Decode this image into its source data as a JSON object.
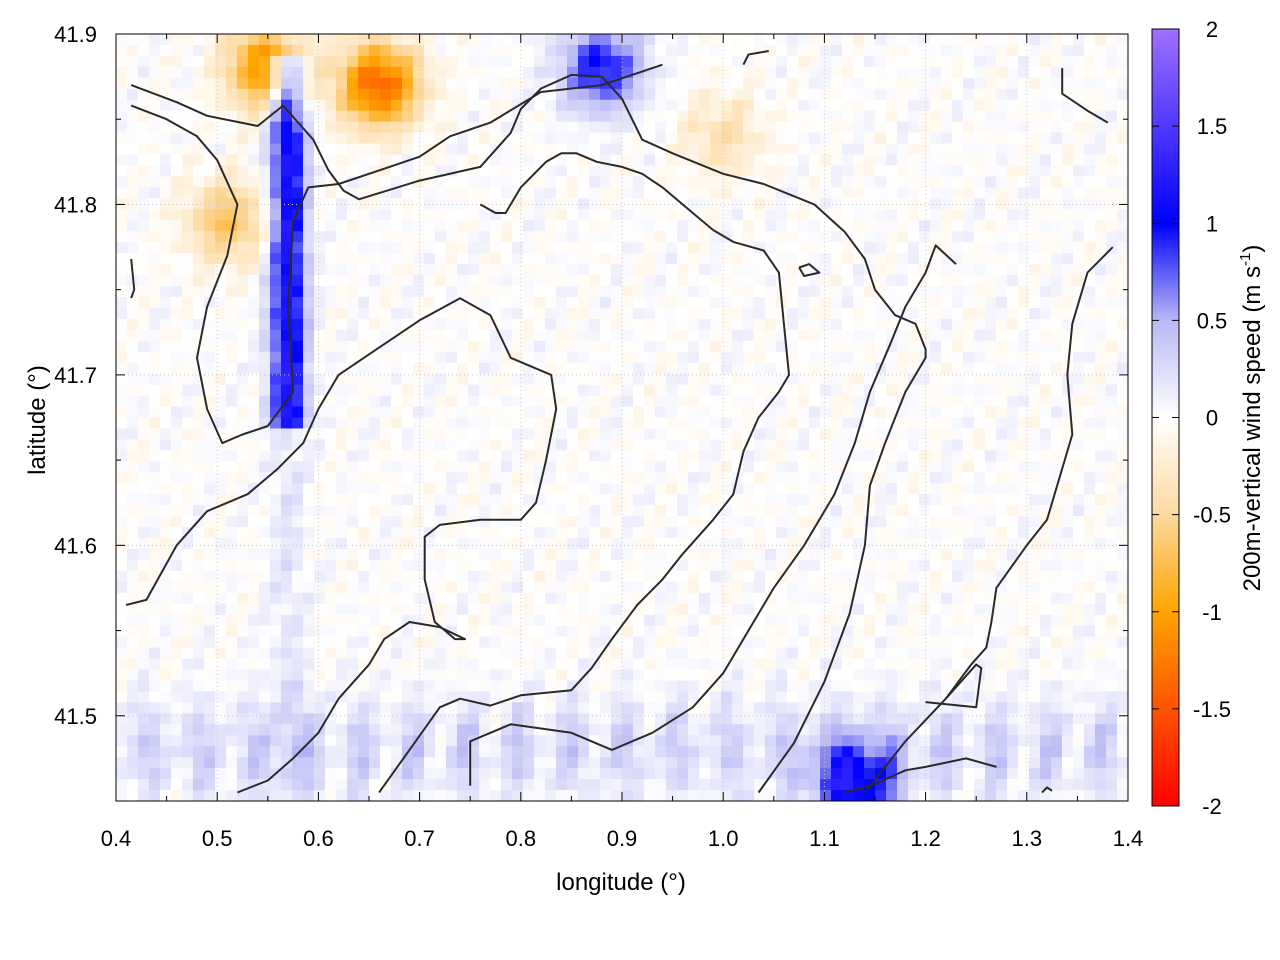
{
  "chart_data": {
    "type": "heatmap",
    "title": "",
    "xlabel": "longitude (°)",
    "ylabel": "latitude (°)",
    "xlim": [
      0.4,
      1.4
    ],
    "ylim": [
      41.45,
      41.9
    ],
    "x_ticks": [
      "0.4",
      "0.5",
      "0.6",
      "0.7",
      "0.8",
      "0.9",
      "1.0",
      "1.1",
      "1.2",
      "1.3",
      "1.4"
    ],
    "y_ticks": [
      "41.5",
      "41.6",
      "41.7",
      "41.8",
      "41.9"
    ],
    "grid": true,
    "colorbar": {
      "label_main": "200m-vertical wind speed (m s",
      "label_sup": "-1",
      "label_close": ")",
      "range": [
        -2,
        2
      ],
      "ticks": [
        "-2",
        "-1.5",
        "-1",
        "-0.5",
        "0",
        "0.5",
        "1",
        "1.5",
        "2"
      ],
      "stops": [
        {
          "value": -2.0,
          "color": "#ff0000"
        },
        {
          "value": -1.0,
          "color": "#ffa500"
        },
        {
          "value": -0.5,
          "color": "#fdd9a0"
        },
        {
          "value": 0.0,
          "color": "#ffffff"
        },
        {
          "value": 0.5,
          "color": "#b8b8f5"
        },
        {
          "value": 1.0,
          "color": "#0000ff"
        },
        {
          "value": 2.0,
          "color": "#a070ff"
        }
      ]
    },
    "field_features": [
      {
        "kind": "updraft_band",
        "description": "strong positive along lon 0.56-0.58 from lat 41.70 to 41.86",
        "lon": [
          0.56,
          0.58
        ],
        "lat": [
          41.7,
          41.86
        ],
        "value": 1.2
      },
      {
        "kind": "downdraft",
        "lon": 0.66,
        "lat": 41.87,
        "value": -1.4
      },
      {
        "kind": "downdraft",
        "lon": 0.55,
        "lat": 41.88,
        "value": -1.2
      },
      {
        "kind": "downdraft",
        "lon": 0.51,
        "lat": 41.79,
        "value": -0.7
      },
      {
        "kind": "downdraft",
        "lon": 1.0,
        "lat": 41.84,
        "value": -0.4
      },
      {
        "kind": "updraft_band",
        "description": "weak positive band along southern edge",
        "lon": [
          0.4,
          1.4
        ],
        "lat": [
          41.46,
          41.5
        ],
        "value": 0.4
      },
      {
        "kind": "updraft",
        "lon": 0.88,
        "lat": 41.88,
        "value": 1.0
      },
      {
        "kind": "updraft",
        "lon": 1.13,
        "lat": 41.46,
        "value": 1.1
      }
    ],
    "contour_lines": [
      {
        "name": "contour-1",
        "points": [
          [
            0.415,
            41.87
          ],
          [
            0.46,
            41.86
          ],
          [
            0.49,
            41.852
          ],
          [
            0.54,
            41.846
          ],
          [
            0.565,
            41.858
          ],
          [
            0.595,
            41.838
          ],
          [
            0.61,
            41.82
          ],
          [
            0.625,
            41.808
          ],
          [
            0.64,
            41.803
          ],
          [
            0.7,
            41.814
          ],
          [
            0.76,
            41.822
          ],
          [
            0.79,
            41.842
          ],
          [
            0.8,
            41.856
          ],
          [
            0.82,
            41.868
          ],
          [
            0.85,
            41.876
          ],
          [
            0.88,
            41.875
          ],
          [
            0.9,
            41.862
          ],
          [
            0.92,
            41.838
          ],
          [
            0.95,
            41.83
          ],
          [
            1.0,
            41.818
          ],
          [
            1.04,
            41.812
          ],
          [
            1.09,
            41.8
          ],
          [
            1.12,
            41.784
          ],
          [
            1.14,
            41.768
          ],
          [
            1.15,
            41.75
          ],
          [
            1.17,
            41.735
          ],
          [
            1.19,
            41.73
          ],
          [
            1.2,
            41.715
          ],
          [
            1.2,
            41.71
          ],
          [
            1.18,
            41.69
          ],
          [
            1.16,
            41.66
          ],
          [
            1.145,
            41.635
          ],
          [
            1.14,
            41.6
          ],
          [
            1.125,
            41.56
          ],
          [
            1.1,
            41.52
          ],
          [
            1.07,
            41.484
          ],
          [
            1.035,
            41.455
          ]
        ]
      },
      {
        "name": "contour-2",
        "points": [
          [
            0.415,
            41.858
          ],
          [
            0.45,
            41.85
          ],
          [
            0.48,
            41.84
          ],
          [
            0.5,
            41.826
          ],
          [
            0.52,
            41.8
          ],
          [
            0.51,
            41.77
          ],
          [
            0.49,
            41.74
          ],
          [
            0.48,
            41.71
          ],
          [
            0.49,
            41.68
          ],
          [
            0.505,
            41.66
          ],
          [
            0.525,
            41.665
          ],
          [
            0.55,
            41.67
          ],
          [
            0.575,
            41.69
          ],
          [
            0.57,
            41.74
          ],
          [
            0.575,
            41.79
          ],
          [
            0.59,
            41.81
          ],
          [
            0.62,
            41.812
          ],
          [
            0.66,
            41.82
          ],
          [
            0.7,
            41.828
          ],
          [
            0.73,
            41.84
          ],
          [
            0.77,
            41.848
          ],
          [
            0.82,
            41.866
          ],
          [
            0.88,
            41.87
          ],
          [
            0.94,
            41.882
          ]
        ]
      },
      {
        "name": "contour-3",
        "points": [
          [
            0.41,
            41.565
          ],
          [
            0.43,
            41.568
          ],
          [
            0.46,
            41.6
          ],
          [
            0.49,
            41.62
          ],
          [
            0.53,
            41.63
          ],
          [
            0.56,
            41.645
          ],
          [
            0.585,
            41.66
          ],
          [
            0.6,
            41.68
          ],
          [
            0.62,
            41.7
          ],
          [
            0.66,
            41.716
          ],
          [
            0.7,
            41.732
          ],
          [
            0.74,
            41.745
          ],
          [
            0.77,
            41.735
          ],
          [
            0.79,
            41.71
          ],
          [
            0.83,
            41.7
          ],
          [
            0.835,
            41.68
          ],
          [
            0.825,
            41.65
          ],
          [
            0.815,
            41.625
          ],
          [
            0.8,
            41.615
          ],
          [
            0.76,
            41.615
          ],
          [
            0.72,
            41.612
          ],
          [
            0.705,
            41.605
          ],
          [
            0.705,
            41.58
          ],
          [
            0.715,
            41.555
          ],
          [
            0.735,
            41.545
          ],
          [
            0.745,
            41.545
          ],
          [
            0.72,
            41.552
          ],
          [
            0.69,
            41.555
          ],
          [
            0.665,
            41.545
          ],
          [
            0.65,
            41.53
          ],
          [
            0.62,
            41.51
          ],
          [
            0.6,
            41.49
          ],
          [
            0.575,
            41.475
          ],
          [
            0.55,
            41.462
          ],
          [
            0.52,
            41.455
          ]
        ]
      },
      {
        "name": "contour-4",
        "points": [
          [
            0.66,
            41.455
          ],
          [
            0.69,
            41.48
          ],
          [
            0.72,
            41.505
          ],
          [
            0.74,
            41.51
          ],
          [
            0.77,
            41.506
          ],
          [
            0.8,
            41.512
          ],
          [
            0.85,
            41.515
          ],
          [
            0.87,
            41.528
          ],
          [
            0.89,
            41.545
          ],
          [
            0.915,
            41.565
          ],
          [
            0.94,
            41.58
          ],
          [
            0.96,
            41.595
          ],
          [
            0.99,
            41.615
          ],
          [
            1.01,
            41.63
          ],
          [
            1.02,
            41.655
          ],
          [
            1.035,
            41.675
          ],
          [
            1.055,
            41.69
          ],
          [
            1.065,
            41.7
          ],
          [
            1.06,
            41.73
          ],
          [
            1.055,
            41.76
          ],
          [
            1.04,
            41.773
          ],
          [
            1.01,
            41.778
          ],
          [
            0.99,
            41.785
          ],
          [
            0.97,
            41.795
          ],
          [
            0.94,
            41.81
          ],
          [
            0.92,
            41.818
          ],
          [
            0.9,
            41.822
          ],
          [
            0.875,
            41.825
          ],
          [
            0.855,
            41.83
          ],
          [
            0.84,
            41.83
          ],
          [
            0.825,
            41.825
          ],
          [
            0.8,
            41.81
          ],
          [
            0.785,
            41.795
          ],
          [
            0.775,
            41.795
          ],
          [
            0.76,
            41.8
          ]
        ]
      },
      {
        "name": "contour-5",
        "points": [
          [
            0.75,
            41.459
          ],
          [
            0.75,
            41.485
          ],
          [
            0.79,
            41.495
          ],
          [
            0.85,
            41.49
          ],
          [
            0.89,
            41.48
          ],
          [
            0.93,
            41.49
          ],
          [
            0.97,
            41.505
          ],
          [
            1.0,
            41.525
          ],
          [
            1.02,
            41.545
          ],
          [
            1.05,
            41.575
          ],
          [
            1.08,
            41.6
          ],
          [
            1.11,
            41.63
          ],
          [
            1.13,
            41.66
          ],
          [
            1.145,
            41.69
          ],
          [
            1.165,
            41.718
          ],
          [
            1.18,
            41.74
          ],
          [
            1.2,
            41.76
          ],
          [
            1.21,
            41.776
          ],
          [
            1.23,
            41.765
          ]
        ]
      },
      {
        "name": "contour-6",
        "points": [
          [
            1.12,
            41.455
          ],
          [
            1.15,
            41.46
          ],
          [
            1.18,
            41.468
          ],
          [
            1.2,
            41.47
          ],
          [
            1.24,
            41.475
          ],
          [
            1.27,
            41.47
          ]
        ]
      },
      {
        "name": "contour-7",
        "points": [
          [
            1.14,
            41.455
          ],
          [
            1.18,
            41.485
          ],
          [
            1.22,
            41.51
          ],
          [
            1.245,
            41.53
          ],
          [
            1.26,
            41.54
          ],
          [
            1.265,
            41.555
          ],
          [
            1.27,
            41.575
          ],
          [
            1.3,
            41.6
          ],
          [
            1.32,
            41.615
          ],
          [
            1.335,
            41.645
          ],
          [
            1.345,
            41.665
          ],
          [
            1.34,
            41.7
          ],
          [
            1.345,
            41.73
          ],
          [
            1.36,
            41.76
          ],
          [
            1.385,
            41.775
          ]
        ]
      },
      {
        "name": "contour-8",
        "points": [
          [
            1.2,
            41.508
          ],
          [
            1.25,
            41.505
          ],
          [
            1.255,
            41.528
          ],
          [
            1.25,
            41.53
          ],
          [
            1.22,
            41.51
          ]
        ]
      },
      {
        "name": "contour-9",
        "points": [
          [
            1.075,
            41.763
          ],
          [
            1.085,
            41.765
          ],
          [
            1.095,
            41.76
          ],
          [
            1.08,
            41.758
          ],
          [
            1.075,
            41.763
          ]
        ]
      },
      {
        "name": "contour-10",
        "points": [
          [
            0.415,
            41.768
          ],
          [
            0.418,
            41.75
          ],
          [
            0.415,
            41.745
          ]
        ]
      },
      {
        "name": "contour-11",
        "points": [
          [
            1.335,
            41.88
          ],
          [
            1.335,
            41.865
          ],
          [
            1.36,
            41.855
          ],
          [
            1.38,
            41.848
          ]
        ]
      },
      {
        "name": "contour-12",
        "points": [
          [
            1.02,
            41.882
          ],
          [
            1.025,
            41.888
          ],
          [
            1.045,
            41.89
          ]
        ]
      },
      {
        "name": "contour-13",
        "points": [
          [
            1.315,
            41.455
          ],
          [
            1.32,
            41.458
          ],
          [
            1.325,
            41.456
          ]
        ]
      }
    ]
  }
}
